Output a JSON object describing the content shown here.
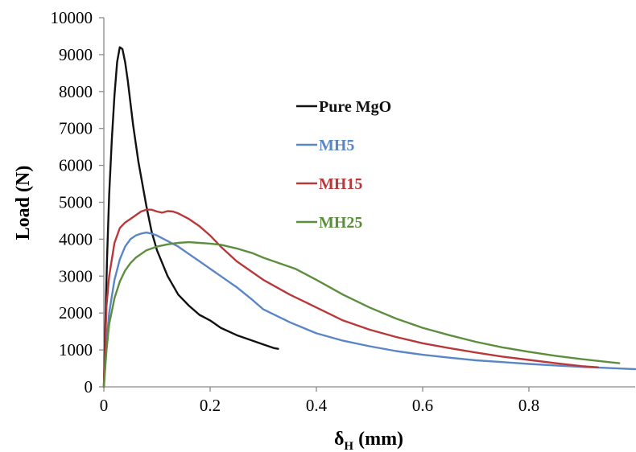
{
  "chart_data": {
    "type": "line",
    "xlabel_main": "δ",
    "xlabel_sub": "H",
    "xlabel_unit": "(mm)",
    "ylabel": "Load (N)",
    "xlim": [
      0,
      1.0
    ],
    "ylim": [
      0,
      10000
    ],
    "x_ticks": [
      "0",
      "0.2",
      "0.4",
      "0.6",
      "0.8"
    ],
    "x_tick_values": [
      0,
      0.2,
      0.4,
      0.6,
      0.8
    ],
    "y_ticks": [
      "0",
      "1000",
      "2000",
      "3000",
      "4000",
      "5000",
      "6000",
      "7000",
      "8000",
      "9000",
      "10000"
    ],
    "y_tick_values": [
      0,
      1000,
      2000,
      3000,
      4000,
      5000,
      6000,
      7000,
      8000,
      9000,
      10000
    ],
    "grid": false,
    "legend_position": "right of peak, upper middle",
    "series": [
      {
        "name": "Pure MgO",
        "color": "#111111",
        "x": [
          0,
          0.003,
          0.006,
          0.01,
          0.015,
          0.02,
          0.025,
          0.03,
          0.035,
          0.04,
          0.045,
          0.05,
          0.055,
          0.06,
          0.065,
          0.07,
          0.08,
          0.09,
          0.1,
          0.12,
          0.14,
          0.16,
          0.18,
          0.2,
          0.22,
          0.25,
          0.28,
          0.3,
          0.32,
          0.328
        ],
        "y": [
          0,
          1800,
          3500,
          5200,
          6700,
          7900,
          8800,
          9200,
          9150,
          8800,
          8300,
          7700,
          7100,
          6600,
          6100,
          5700,
          4900,
          4200,
          3700,
          3000,
          2500,
          2200,
          1950,
          1800,
          1600,
          1400,
          1250,
          1150,
          1050,
          1030
        ]
      },
      {
        "name": "MH5",
        "color": "#5b86c5",
        "x": [
          0,
          0.005,
          0.01,
          0.02,
          0.03,
          0.04,
          0.05,
          0.06,
          0.07,
          0.08,
          0.09,
          0.1,
          0.12,
          0.14,
          0.16,
          0.18,
          0.2,
          0.22,
          0.25,
          0.28,
          0.3,
          0.35,
          0.4,
          0.45,
          0.5,
          0.55,
          0.6,
          0.65,
          0.7,
          0.75,
          0.8,
          0.85,
          0.9,
          0.95,
          1.0
        ],
        "y": [
          0,
          1200,
          2000,
          2900,
          3450,
          3800,
          4000,
          4100,
          4150,
          4180,
          4150,
          4100,
          3950,
          3800,
          3600,
          3400,
          3200,
          3000,
          2700,
          2350,
          2100,
          1750,
          1450,
          1250,
          1100,
          970,
          870,
          790,
          720,
          670,
          620,
          580,
          540,
          510,
          480
        ]
      },
      {
        "name": "MH15",
        "color": "#b8393b",
        "x": [
          0,
          0.005,
          0.01,
          0.02,
          0.03,
          0.04,
          0.05,
          0.06,
          0.07,
          0.08,
          0.09,
          0.1,
          0.11,
          0.12,
          0.13,
          0.14,
          0.16,
          0.18,
          0.2,
          0.22,
          0.25,
          0.3,
          0.35,
          0.4,
          0.45,
          0.5,
          0.55,
          0.6,
          0.65,
          0.7,
          0.75,
          0.8,
          0.85,
          0.9,
          0.93
        ],
        "y": [
          0,
          2200,
          3000,
          3900,
          4300,
          4450,
          4550,
          4650,
          4750,
          4800,
          4800,
          4750,
          4720,
          4760,
          4750,
          4700,
          4550,
          4350,
          4100,
          3800,
          3400,
          2900,
          2500,
          2150,
          1800,
          1550,
          1350,
          1180,
          1050,
          930,
          820,
          730,
          640,
          560,
          530
        ]
      },
      {
        "name": "MH25",
        "color": "#5c8e3e",
        "x": [
          0,
          0.005,
          0.01,
          0.02,
          0.03,
          0.04,
          0.05,
          0.06,
          0.07,
          0.08,
          0.1,
          0.12,
          0.14,
          0.16,
          0.18,
          0.2,
          0.22,
          0.25,
          0.28,
          0.3,
          0.33,
          0.36,
          0.4,
          0.45,
          0.5,
          0.55,
          0.6,
          0.65,
          0.7,
          0.75,
          0.8,
          0.85,
          0.9,
          0.95,
          0.97
        ],
        "y": [
          0,
          1000,
          1700,
          2400,
          2850,
          3150,
          3350,
          3500,
          3600,
          3700,
          3800,
          3860,
          3900,
          3920,
          3900,
          3880,
          3850,
          3750,
          3620,
          3500,
          3350,
          3200,
          2900,
          2500,
          2150,
          1850,
          1600,
          1400,
          1220,
          1070,
          950,
          840,
          750,
          670,
          640
        ]
      }
    ]
  }
}
